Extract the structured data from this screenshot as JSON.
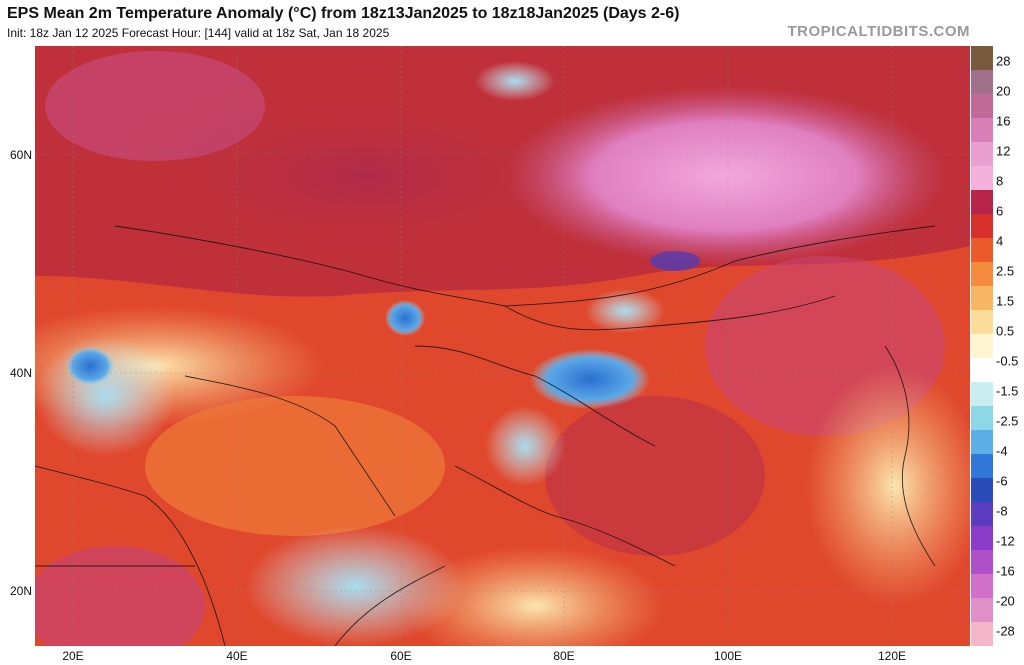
{
  "header": {
    "title": "EPS Mean 2m Temperature Anomaly (°C) from 18z13Jan2025 to 18z18Jan2025 (Days 2-6)",
    "subtitle": "Init: 18z Jan 12 2025   Forecast Hour: [144]   valid at 18z Sat, Jan 18 2025",
    "brand": "TROPICALTIDBITS.COM"
  },
  "map": {
    "y_ticks": [
      "60N",
      "40N",
      "20N"
    ],
    "x_ticks": [
      "20E",
      "40E",
      "60E",
      "80E",
      "100E",
      "120E"
    ]
  },
  "colorbar": {
    "labels": [
      "28",
      "20",
      "16",
      "12",
      "8",
      "6",
      "4",
      "2.5",
      "1.5",
      "0.5",
      "-0.5",
      "-1.5",
      "-2.5",
      "-4",
      "-6",
      "-8",
      "-12",
      "-16",
      "-20",
      "-28"
    ],
    "colors": [
      "#7a5a3c",
      "#a0708a",
      "#c06a9a",
      "#d77fb6",
      "#e9a0d0",
      "#f5b0dc",
      "#b6244a",
      "#d8302c",
      "#eb5a2a",
      "#f48a3c",
      "#f8b664",
      "#fbdc98",
      "#fff6d0",
      "#ffffff",
      "#c8eef2",
      "#8ed7e6",
      "#5ab0e6",
      "#2f78d8",
      "#2a4cb8",
      "#5a3cc0",
      "#8a3cc8",
      "#b050c8",
      "#d070c8",
      "#e090c8",
      "#f4b6c8"
    ]
  }
}
